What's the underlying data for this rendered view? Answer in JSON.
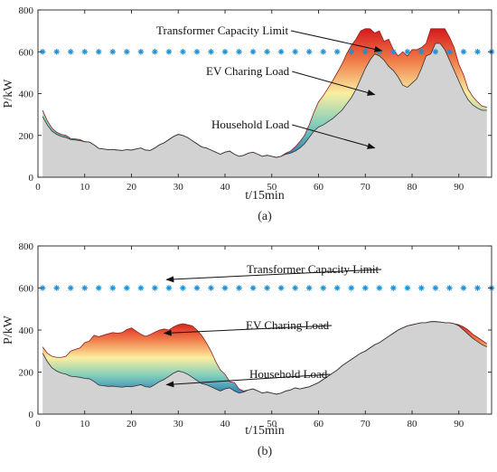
{
  "chart_data": [
    {
      "type": "area",
      "panel_label": "(a)",
      "xlabel": "t/15min",
      "ylabel": "P/kW",
      "xlim": [
        0,
        97
      ],
      "ylim": [
        0,
        800
      ],
      "xticks": [
        0,
        10,
        20,
        30,
        40,
        50,
        60,
        70,
        80,
        90
      ],
      "yticks": [
        0,
        200,
        400,
        600,
        800
      ],
      "grid": false,
      "series": [
        {
          "name": "Household Load",
          "x": [
            1,
            2,
            3,
            4,
            5,
            6,
            7,
            8,
            9,
            10,
            11,
            12,
            13,
            14,
            15,
            16,
            17,
            18,
            19,
            20,
            21,
            22,
            23,
            24,
            25,
            26,
            27,
            28,
            29,
            30,
            31,
            32,
            33,
            34,
            35,
            36,
            37,
            38,
            39,
            40,
            41,
            42,
            43,
            44,
            45,
            46,
            47,
            48,
            49,
            50,
            51,
            52,
            53,
            54,
            55,
            56,
            57,
            58,
            59,
            60,
            61,
            62,
            63,
            64,
            65,
            66,
            67,
            68,
            69,
            70,
            71,
            72,
            73,
            74,
            75,
            76,
            77,
            78,
            79,
            80,
            81,
            82,
            83,
            84,
            85,
            86,
            87,
            88,
            89,
            90,
            91,
            92,
            93,
            94,
            95,
            96
          ],
          "values": [
            290,
            250,
            220,
            205,
            195,
            190,
            180,
            178,
            175,
            170,
            168,
            155,
            138,
            135,
            132,
            133,
            130,
            128,
            132,
            130,
            135,
            140,
            130,
            128,
            140,
            155,
            165,
            180,
            195,
            205,
            200,
            190,
            175,
            160,
            145,
            140,
            130,
            120,
            110,
            120,
            125,
            110,
            100,
            105,
            115,
            120,
            110,
            100,
            105,
            100,
            95,
            100,
            110,
            115,
            125,
            140,
            160,
            190,
            220,
            240,
            250,
            265,
            280,
            300,
            320,
            350,
            380,
            420,
            470,
            520,
            560,
            590,
            580,
            560,
            530,
            510,
            480,
            440,
            430,
            450,
            470,
            520,
            580,
            590,
            640,
            640,
            610,
            560,
            510,
            460,
            410,
            370,
            345,
            330,
            320,
            320
          ]
        },
        {
          "name": "EV Charing Load",
          "x": [
            1,
            2,
            3,
            4,
            5,
            6,
            7,
            8,
            9,
            10,
            11,
            12,
            13,
            14,
            15,
            16,
            17,
            18,
            19,
            20,
            21,
            22,
            23,
            24,
            25,
            26,
            27,
            28,
            29,
            30,
            31,
            32,
            33,
            34,
            35,
            36,
            37,
            38,
            39,
            40,
            41,
            42,
            43,
            44,
            45,
            46,
            47,
            48,
            49,
            50,
            51,
            52,
            53,
            54,
            55,
            56,
            57,
            58,
            59,
            60,
            61,
            62,
            63,
            64,
            65,
            66,
            67,
            68,
            69,
            70,
            71,
            72,
            73,
            74,
            75,
            76,
            77,
            78,
            79,
            80,
            81,
            82,
            83,
            84,
            85,
            86,
            87,
            88,
            89,
            90,
            91,
            92,
            93,
            94,
            95,
            96
          ],
          "values": [
            30,
            20,
            15,
            10,
            10,
            10,
            5,
            5,
            5,
            0,
            0,
            0,
            0,
            0,
            0,
            0,
            0,
            0,
            0,
            0,
            0,
            0,
            0,
            0,
            0,
            0,
            0,
            0,
            0,
            0,
            0,
            0,
            0,
            0,
            0,
            0,
            0,
            0,
            0,
            0,
            0,
            0,
            0,
            0,
            0,
            0,
            0,
            0,
            0,
            0,
            0,
            0,
            5,
            10,
            20,
            30,
            40,
            60,
            90,
            120,
            140,
            160,
            180,
            200,
            220,
            240,
            250,
            240,
            230,
            190,
            150,
            100,
            120,
            90,
            130,
            100,
            100,
            160,
            150,
            160,
            140,
            100,
            60,
            120,
            70,
            70,
            100,
            110,
            110,
            80,
            80,
            50,
            40,
            30,
            20,
            15
          ]
        },
        {
          "name": "Transformer Capacity Limit",
          "x": [
            1,
            4,
            7,
            10,
            13,
            16,
            19,
            22,
            25,
            28,
            31,
            34,
            37,
            40,
            43,
            46,
            49,
            52,
            55,
            58,
            61,
            64,
            67,
            70,
            73,
            76,
            79,
            82,
            85,
            88,
            91,
            94,
            97
          ],
          "values": [
            600,
            600,
            600,
            600,
            600,
            600,
            600,
            600,
            600,
            600,
            600,
            600,
            600,
            600,
            600,
            600,
            600,
            600,
            600,
            600,
            600,
            600,
            600,
            600,
            600,
            600,
            600,
            600,
            600,
            600,
            600,
            600,
            600
          ]
        }
      ],
      "annotations": [
        {
          "text": "Transformer Capacity Limit",
          "target_x": 73.5,
          "target_y": 605
        },
        {
          "text": "EV Charing Load",
          "target_x": 72,
          "target_y": 395
        },
        {
          "text": "Household Load",
          "target_x": 72,
          "target_y": 140
        }
      ]
    },
    {
      "type": "area",
      "panel_label": "(b)",
      "xlabel": "t/15min",
      "ylabel": "P/kW",
      "xlim": [
        0,
        97
      ],
      "ylim": [
        0,
        800
      ],
      "xticks": [
        0,
        10,
        20,
        30,
        40,
        50,
        60,
        70,
        80,
        90
      ],
      "yticks": [
        0,
        200,
        400,
        600,
        800
      ],
      "grid": false,
      "series": [
        {
          "name": "Household Load",
          "x": [
            1,
            2,
            3,
            4,
            5,
            6,
            7,
            8,
            9,
            10,
            11,
            12,
            13,
            14,
            15,
            16,
            17,
            18,
            19,
            20,
            21,
            22,
            23,
            24,
            25,
            26,
            27,
            28,
            29,
            30,
            31,
            32,
            33,
            34,
            35,
            36,
            37,
            38,
            39,
            40,
            41,
            42,
            43,
            44,
            45,
            46,
            47,
            48,
            49,
            50,
            51,
            52,
            53,
            54,
            55,
            56,
            57,
            58,
            59,
            60,
            61,
            62,
            63,
            64,
            65,
            66,
            67,
            68,
            69,
            70,
            71,
            72,
            73,
            74,
            75,
            76,
            77,
            78,
            79,
            80,
            81,
            82,
            83,
            84,
            85,
            86,
            87,
            88,
            89,
            90,
            91,
            92,
            93,
            94,
            95,
            96
          ],
          "values": [
            290,
            250,
            220,
            205,
            195,
            190,
            180,
            178,
            175,
            170,
            168,
            155,
            138,
            135,
            132,
            133,
            130,
            128,
            132,
            130,
            135,
            140,
            130,
            128,
            140,
            155,
            165,
            180,
            195,
            205,
            200,
            190,
            175,
            160,
            145,
            140,
            130,
            120,
            110,
            120,
            125,
            110,
            100,
            105,
            115,
            120,
            110,
            100,
            105,
            100,
            95,
            100,
            110,
            115,
            125,
            120,
            125,
            130,
            140,
            150,
            165,
            180,
            195,
            210,
            230,
            245,
            260,
            275,
            290,
            300,
            315,
            330,
            340,
            355,
            370,
            385,
            400,
            410,
            420,
            425,
            430,
            435,
            435,
            440,
            440,
            438,
            435,
            435,
            430,
            420,
            400,
            380,
            360,
            345,
            330,
            320
          ]
        },
        {
          "name": "EV Charing Load",
          "x": [
            1,
            2,
            3,
            4,
            5,
            6,
            7,
            8,
            9,
            10,
            11,
            12,
            13,
            14,
            15,
            16,
            17,
            18,
            19,
            20,
            21,
            22,
            23,
            24,
            25,
            26,
            27,
            28,
            29,
            30,
            31,
            32,
            33,
            34,
            35,
            36,
            37,
            38,
            39,
            40,
            41,
            42,
            43,
            44,
            45,
            46,
            47,
            48,
            49,
            50,
            51,
            52,
            53,
            54,
            55,
            56,
            57,
            58,
            59,
            60,
            61,
            62,
            63,
            64,
            65,
            66,
            67,
            68,
            69,
            70,
            71,
            72,
            73,
            74,
            75,
            76,
            77,
            78,
            79,
            80,
            81,
            82,
            83,
            84,
            85,
            86,
            87,
            88,
            89,
            90,
            91,
            92,
            93,
            94,
            95,
            96
          ],
          "values": [
            30,
            40,
            55,
            65,
            75,
            85,
            120,
            130,
            140,
            170,
            180,
            220,
            230,
            240,
            250,
            255,
            255,
            260,
            270,
            280,
            260,
            240,
            240,
            250,
            250,
            245,
            240,
            220,
            220,
            220,
            230,
            235,
            245,
            240,
            230,
            200,
            170,
            130,
            100,
            70,
            30,
            40,
            20,
            5,
            0,
            0,
            0,
            0,
            0,
            0,
            0,
            0,
            0,
            0,
            0,
            0,
            0,
            0,
            0,
            0,
            0,
            0,
            0,
            0,
            0,
            0,
            0,
            0,
            0,
            0,
            0,
            0,
            0,
            0,
            0,
            0,
            0,
            0,
            0,
            0,
            0,
            0,
            0,
            0,
            0,
            0,
            0,
            0,
            0,
            5,
            15,
            20,
            20,
            20,
            20,
            15
          ]
        },
        {
          "name": "Transformer Capacity Limit",
          "x": [
            1,
            4,
            7,
            10,
            13,
            16,
            19,
            22,
            25,
            28,
            31,
            34,
            37,
            40,
            43,
            46,
            49,
            52,
            55,
            58,
            61,
            64,
            67,
            70,
            73,
            76,
            79,
            82,
            85,
            88,
            91,
            94,
            97
          ],
          "values": [
            600,
            600,
            600,
            600,
            600,
            600,
            600,
            600,
            600,
            600,
            600,
            600,
            600,
            600,
            600,
            600,
            600,
            600,
            600,
            600,
            600,
            600,
            600,
            600,
            600,
            600,
            600,
            600,
            600,
            600,
            600,
            600,
            600
          ]
        }
      ],
      "annotations": [
        {
          "text": "Transformer Capacity Limit",
          "target_x": 27.5,
          "target_y": 640
        },
        {
          "text": "EV Charing Load",
          "target_x": 27,
          "target_y": 385
        },
        {
          "text": "Household Load",
          "target_x": 27.5,
          "target_y": 140
        }
      ]
    }
  ]
}
